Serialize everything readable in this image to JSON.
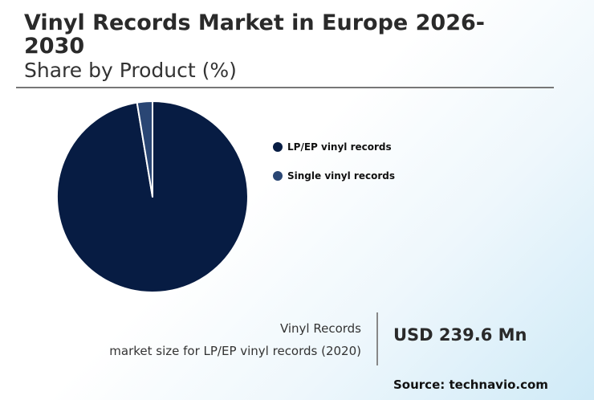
{
  "title": "Vinyl Records Market in Europe 2026-2030",
  "subtitle": "Share by Product (%)",
  "chart_data": {
    "type": "pie",
    "categories": [
      "LP/EP vinyl records",
      "Single vinyl records"
    ],
    "values": [
      97.4,
      2.6
    ],
    "colors": [
      "#071c43",
      "#2a4674"
    ],
    "legend_position": "right"
  },
  "stat": {
    "label_line1": "Vinyl Records",
    "label_line2": "market size for LP/EP vinyl records (2020)",
    "value": "USD 239.6 Mn"
  },
  "source": "Source: technavio.com"
}
